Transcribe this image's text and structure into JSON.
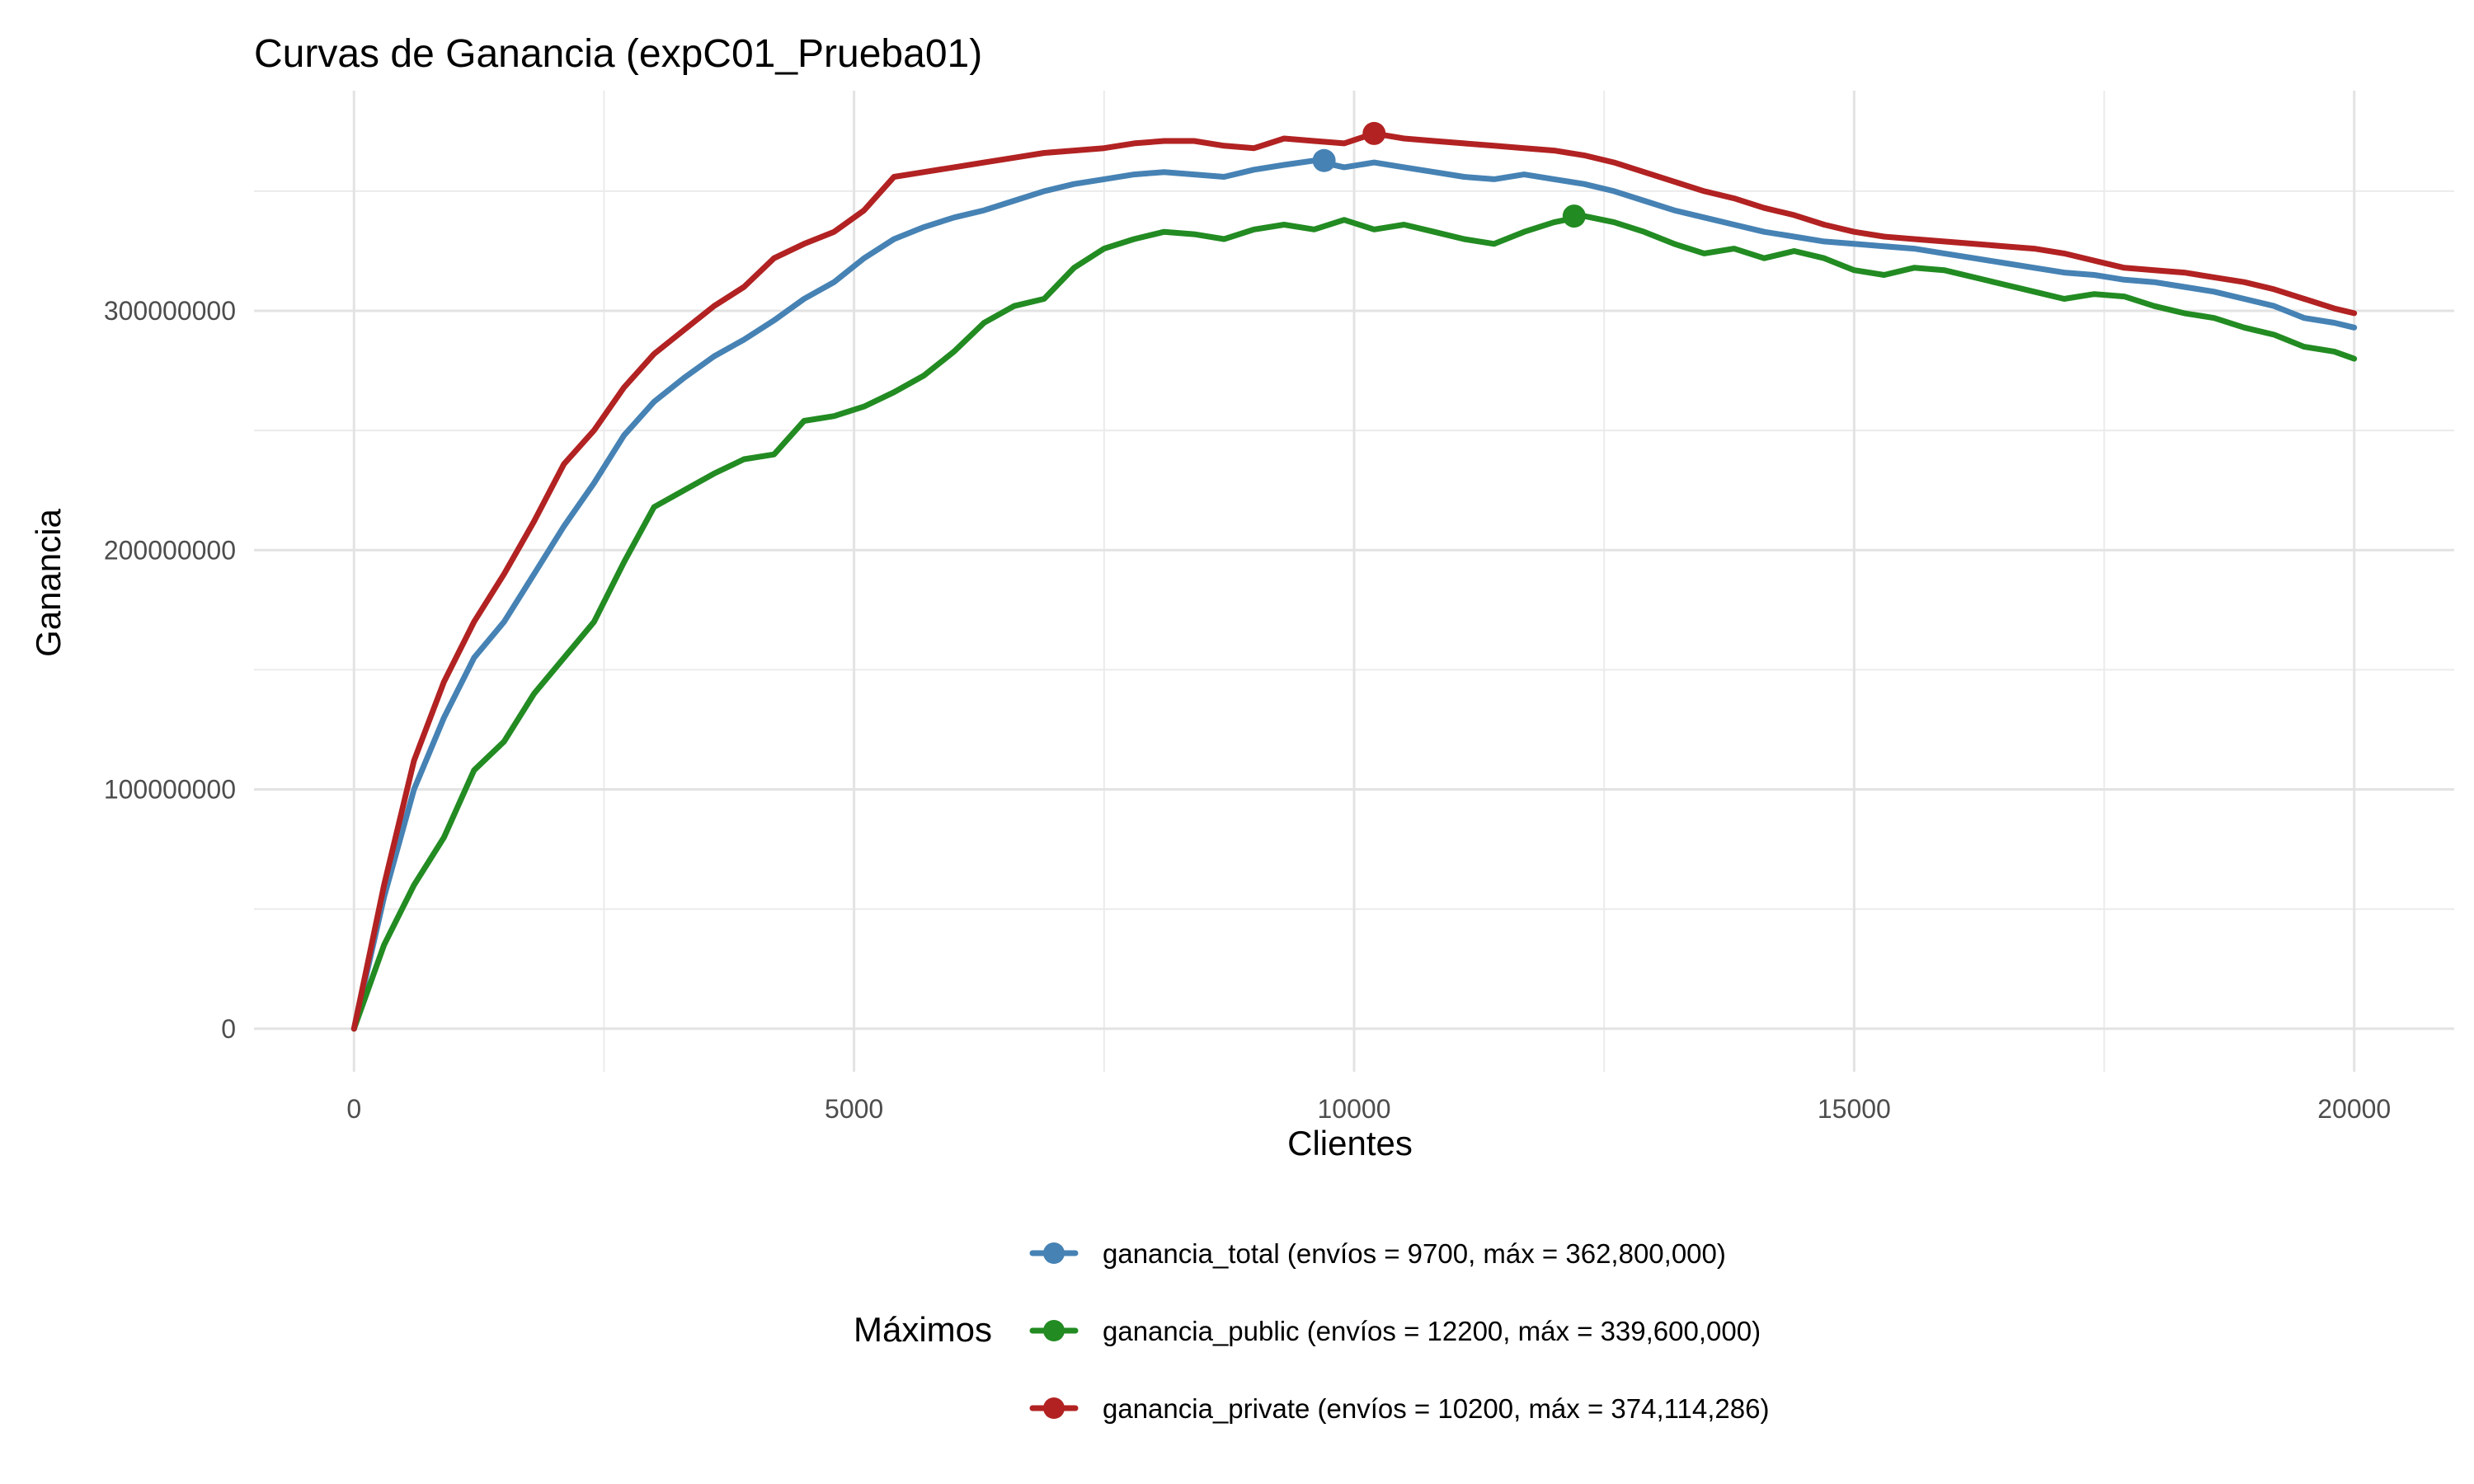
{
  "chart_data": {
    "type": "line",
    "title": "Curvas de Ganancia (expC01_Prueba01)",
    "xlabel": "Clientes",
    "ylabel": "Ganancia",
    "xlim": [
      -1000,
      21000
    ],
    "ylim": [
      -18000000,
      392000000
    ],
    "x_ticks": [
      0,
      5000,
      10000,
      15000,
      20000
    ],
    "x_tick_labels": [
      "0",
      "5000",
      "10000",
      "15000",
      "20000"
    ],
    "y_ticks": [
      0,
      100000000,
      200000000,
      300000000
    ],
    "y_tick_labels": [
      "0",
      "100000000",
      "200000000",
      "300000000"
    ],
    "grid": true,
    "legend": {
      "position": "bottom",
      "title": "Máximos",
      "entries": [
        "ganancia_total (envíos = 9700, máx = 362,800,000)",
        "ganancia_public (envíos = 12200, máx = 339,600,000)",
        "ganancia_private (envíos = 10200, máx = 374,114,286)"
      ]
    },
    "colors": [
      "#4682b4",
      "#228b22",
      "#b22222"
    ],
    "series": [
      {
        "color": "#4682b4",
        "max_point": [
          9700,
          362800000
        ],
        "x": [
          0,
          300,
          600,
          900,
          1200,
          1500,
          1800,
          2100,
          2400,
          2700,
          3000,
          3300,
          3600,
          3900,
          4200,
          4500,
          4800,
          5100,
          5400,
          5700,
          6000,
          6300,
          6600,
          6900,
          7200,
          7500,
          7800,
          8100,
          8400,
          8700,
          9000,
          9300,
          9600,
          9900,
          10200,
          10500,
          10800,
          11100,
          11400,
          11700,
          12000,
          12300,
          12600,
          12900,
          13200,
          13500,
          13800,
          14100,
          14400,
          14700,
          15000,
          15300,
          15600,
          15900,
          16200,
          16500,
          16800,
          17100,
          17400,
          17700,
          18000,
          18300,
          18600,
          18900,
          19200,
          19500,
          19800,
          20000
        ],
        "y": [
          0,
          55000000,
          100000000,
          130000000,
          155000000,
          170000000,
          190000000,
          210000000,
          228000000,
          248000000,
          262000000,
          272000000,
          281000000,
          288000000,
          296000000,
          305000000,
          312000000,
          322000000,
          330000000,
          335000000,
          339000000,
          342000000,
          346000000,
          350000000,
          353000000,
          355000000,
          357000000,
          358000000,
          357000000,
          356000000,
          359000000,
          361000000,
          362800000,
          360000000,
          362000000,
          360000000,
          358000000,
          356000000,
          355000000,
          357000000,
          355000000,
          353000000,
          350000000,
          346000000,
          342000000,
          339000000,
          336000000,
          333000000,
          331000000,
          329000000,
          328000000,
          327000000,
          326000000,
          324000000,
          322000000,
          320000000,
          318000000,
          316000000,
          315000000,
          313000000,
          312000000,
          310000000,
          308000000,
          305000000,
          302000000,
          297000000,
          295000000,
          293000000
        ]
      },
      {
        "color": "#228b22",
        "max_point": [
          12200,
          339600000
        ],
        "x": [
          0,
          300,
          600,
          900,
          1200,
          1500,
          1800,
          2100,
          2400,
          2700,
          3000,
          3300,
          3600,
          3900,
          4200,
          4500,
          4800,
          5100,
          5400,
          5700,
          6000,
          6300,
          6600,
          6900,
          7200,
          7500,
          7800,
          8100,
          8400,
          8700,
          9000,
          9300,
          9600,
          9900,
          10200,
          10500,
          10800,
          11100,
          11400,
          11700,
          12000,
          12300,
          12600,
          12900,
          13200,
          13500,
          13800,
          14100,
          14400,
          14700,
          15000,
          15300,
          15600,
          15900,
          16200,
          16500,
          16800,
          17100,
          17400,
          17700,
          18000,
          18300,
          18600,
          18900,
          19200,
          19500,
          19800,
          20000
        ],
        "y": [
          0,
          35000000,
          60000000,
          80000000,
          108000000,
          120000000,
          140000000,
          155000000,
          170000000,
          195000000,
          218000000,
          225000000,
          232000000,
          238000000,
          240000000,
          254000000,
          256000000,
          260000000,
          266000000,
          273000000,
          283000000,
          295000000,
          302000000,
          305000000,
          318000000,
          326000000,
          330000000,
          333000000,
          332000000,
          330000000,
          334000000,
          336000000,
          334000000,
          338000000,
          334000000,
          336000000,
          333000000,
          330000000,
          328000000,
          333000000,
          337000000,
          339600000,
          337000000,
          333000000,
          328000000,
          324000000,
          326000000,
          322000000,
          325000000,
          322000000,
          317000000,
          315000000,
          318000000,
          317000000,
          314000000,
          311000000,
          308000000,
          305000000,
          307000000,
          306000000,
          302000000,
          299000000,
          297000000,
          293000000,
          290000000,
          285000000,
          283000000,
          280000000
        ]
      },
      {
        "color": "#b22222",
        "max_point": [
          10200,
          374114286
        ],
        "x": [
          0,
          300,
          600,
          900,
          1200,
          1500,
          1800,
          2100,
          2400,
          2700,
          3000,
          3300,
          3600,
          3900,
          4200,
          4500,
          4800,
          5100,
          5400,
          5700,
          6000,
          6300,
          6600,
          6900,
          7200,
          7500,
          7800,
          8100,
          8400,
          8700,
          9000,
          9300,
          9600,
          9900,
          10200,
          10500,
          10800,
          11100,
          11400,
          11700,
          12000,
          12300,
          12600,
          12900,
          13200,
          13500,
          13800,
          14100,
          14400,
          14700,
          15000,
          15300,
          15600,
          15900,
          16200,
          16500,
          16800,
          17100,
          17400,
          17700,
          18000,
          18300,
          18600,
          18900,
          19200,
          19500,
          19800,
          20000
        ],
        "y": [
          0,
          60000000,
          112000000,
          145000000,
          170000000,
          190000000,
          212000000,
          236000000,
          250000000,
          268000000,
          282000000,
          292000000,
          302000000,
          310000000,
          322000000,
          328000000,
          333000000,
          342000000,
          356000000,
          358000000,
          360000000,
          362000000,
          364000000,
          366000000,
          367000000,
          368000000,
          370000000,
          371000000,
          371000000,
          369000000,
          368000000,
          372000000,
          371000000,
          370000000,
          374114286,
          372000000,
          371000000,
          370000000,
          369000000,
          368000000,
          367000000,
          365000000,
          362000000,
          358000000,
          354000000,
          350000000,
          347000000,
          343000000,
          340000000,
          336000000,
          333000000,
          331000000,
          330000000,
          329000000,
          328000000,
          327000000,
          326000000,
          324000000,
          321000000,
          318000000,
          317000000,
          316000000,
          314000000,
          312000000,
          309000000,
          305000000,
          301000000,
          299000000
        ]
      }
    ]
  }
}
